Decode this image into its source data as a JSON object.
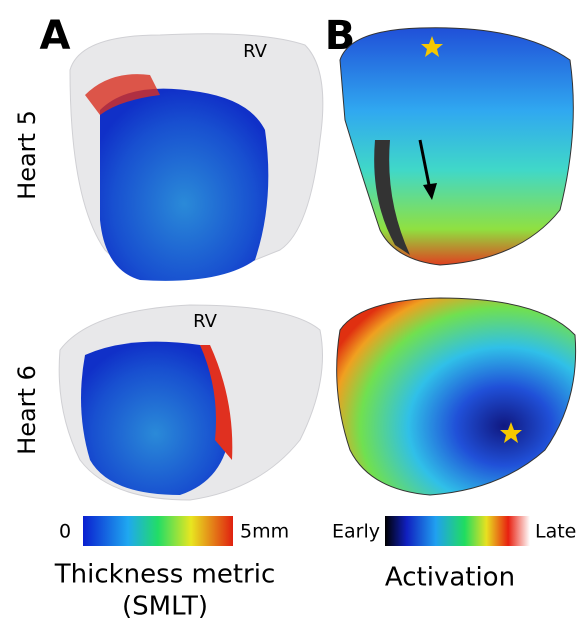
{
  "panels": [
    {
      "label": "A"
    },
    {
      "label": "B"
    }
  ],
  "rows": [
    {
      "label": "Heart 5",
      "annotation": "RV"
    },
    {
      "label": "Heart 6",
      "annotation": "RV"
    }
  ],
  "colorbars": [
    {
      "min_label": "0",
      "max_label": "5mm",
      "title": "Thickness metric",
      "subtitle": "(SMLT)"
    },
    {
      "min_label": "Early",
      "max_label": "Late",
      "title": "Activation"
    }
  ]
}
